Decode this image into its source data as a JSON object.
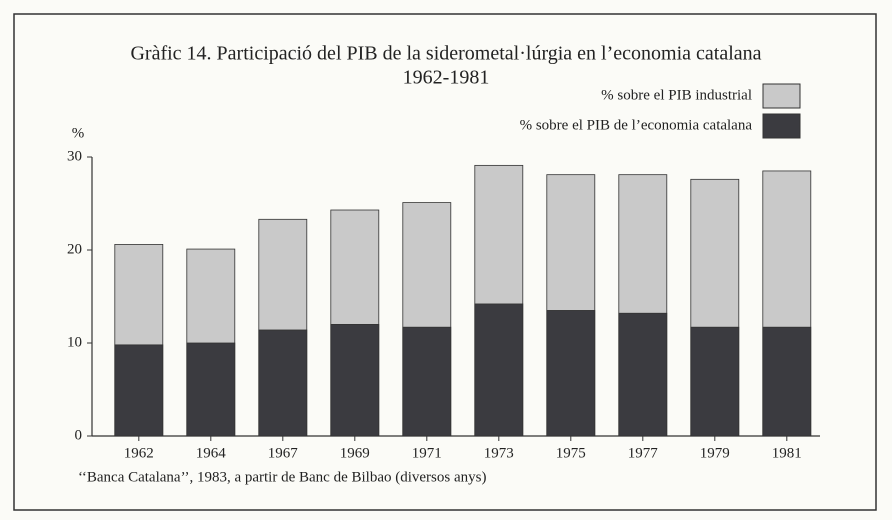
{
  "chart_data": {
    "type": "bar",
    "title": "Gràfic 14. Participació del PIB de la siderometal·lúrgia en l’economia catalana",
    "subtitle": "1962-1981",
    "y_label": "%",
    "note": "‘‘Banca Catalana’’, 1983, a partir de Banc de Bilbao (diversos anys)",
    "categories": [
      "1962",
      "1964",
      "1967",
      "1969",
      "1971",
      "1973",
      "1975",
      "1977",
      "1979",
      "1981"
    ],
    "series": [
      {
        "name": "% sobre el PIB industrial",
        "color": "#c9c9c9",
        "values": [
          20.6,
          20.1,
          23.3,
          24.3,
          25.1,
          29.1,
          28.1,
          28.1,
          27.6,
          28.5
        ]
      },
      {
        "name": "% sobre el PIB de l’economia catalana",
        "color": "#3b3b40",
        "values": [
          9.8,
          10.0,
          11.4,
          12.0,
          11.7,
          14.2,
          13.5,
          13.2,
          11.7,
          11.7
        ]
      }
    ],
    "ylim": [
      0,
      30
    ],
    "yticks": [
      0,
      10,
      20,
      30
    ]
  }
}
